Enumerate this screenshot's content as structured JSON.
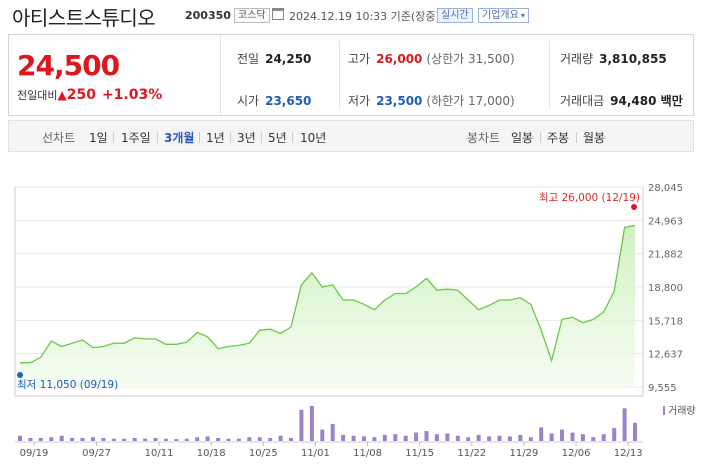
{
  "stock": {
    "name": "아티스트스튜디오",
    "code": "200350",
    "market": "코스닥",
    "datetime": "2024.12.19 10:33 기준(장중)",
    "realtime": "실시간",
    "company_overview": "기업개요"
  },
  "price": {
    "current": "24,500",
    "change_label": "전일대비",
    "change_arrow": "▲",
    "change": "250",
    "change_pct": "+1.03%"
  },
  "quotes": {
    "prev_label": "전일",
    "prev": "24,250",
    "high_label": "고가",
    "high": "26,000",
    "upper_limit": "(상한가 31,500)",
    "volume_label": "거래량",
    "volume": "3,810,855",
    "open_label": "시가",
    "open": "23,650",
    "low_label": "저가",
    "low": "23,500",
    "lower_limit": "(하한가 17,000)",
    "amount_label": "거래대금",
    "amount": "94,480 백만"
  },
  "periods": {
    "label": "선차트",
    "items": [
      "1일",
      "1주일",
      "3개월",
      "1년",
      "3년",
      "5년",
      "10년"
    ],
    "active": "3개월",
    "candle_label": "봉차트",
    "candle_items": [
      "일봉",
      "주봉",
      "월봉"
    ]
  },
  "chart_data": {
    "type": "area",
    "y_ticks": [
      "28,045",
      "24,963",
      "21,882",
      "18,800",
      "15,718",
      "12,637",
      "9,555"
    ],
    "ylim": [
      9555,
      28045
    ],
    "x_ticks": [
      "09/19",
      "09/27",
      "10/11",
      "10/18",
      "10/25",
      "11/01",
      "11/08",
      "11/15",
      "11/22",
      "11/29",
      "12/06",
      "12/13"
    ],
    "high_label": "최고 26,000 (12/19)",
    "low_label": "최저 11,050 (09/19)",
    "volume_label": "거래량",
    "series_color": "#6bc847",
    "volume_color": "#9b82c9",
    "prices": [
      11800,
      11800,
      12300,
      13800,
      13300,
      13600,
      13900,
      13200,
      13300,
      13600,
      13600,
      14100,
      14000,
      14000,
      13500,
      13500,
      13700,
      14600,
      14200,
      13100,
      13300,
      13400,
      13600,
      14800,
      14900,
      14500,
      15100,
      19000,
      20100,
      18800,
      19000,
      17600,
      17600,
      17200,
      16700,
      17600,
      18200,
      18200,
      18800,
      19600,
      18500,
      18600,
      18500,
      17600,
      16700,
      17100,
      17600,
      17600,
      17800,
      17200,
      14800,
      12000,
      15800,
      16000,
      15500,
      15800,
      16500,
      18400,
      24300,
      24500
    ],
    "volumes": [
      0.14,
      0.08,
      0.08,
      0.1,
      0.14,
      0.08,
      0.08,
      0.1,
      0.08,
      0.06,
      0.06,
      0.08,
      0.06,
      0.08,
      0.06,
      0.05,
      0.06,
      0.1,
      0.12,
      0.08,
      0.06,
      0.06,
      0.1,
      0.1,
      0.08,
      0.14,
      0.08,
      0.82,
      0.92,
      0.3,
      0.45,
      0.16,
      0.14,
      0.12,
      0.1,
      0.16,
      0.18,
      0.14,
      0.22,
      0.26,
      0.18,
      0.2,
      0.14,
      0.1,
      0.16,
      0.12,
      0.14,
      0.12,
      0.16,
      0.1,
      0.36,
      0.2,
      0.3,
      0.22,
      0.18,
      0.1,
      0.18,
      0.34,
      0.86,
      0.48
    ]
  }
}
